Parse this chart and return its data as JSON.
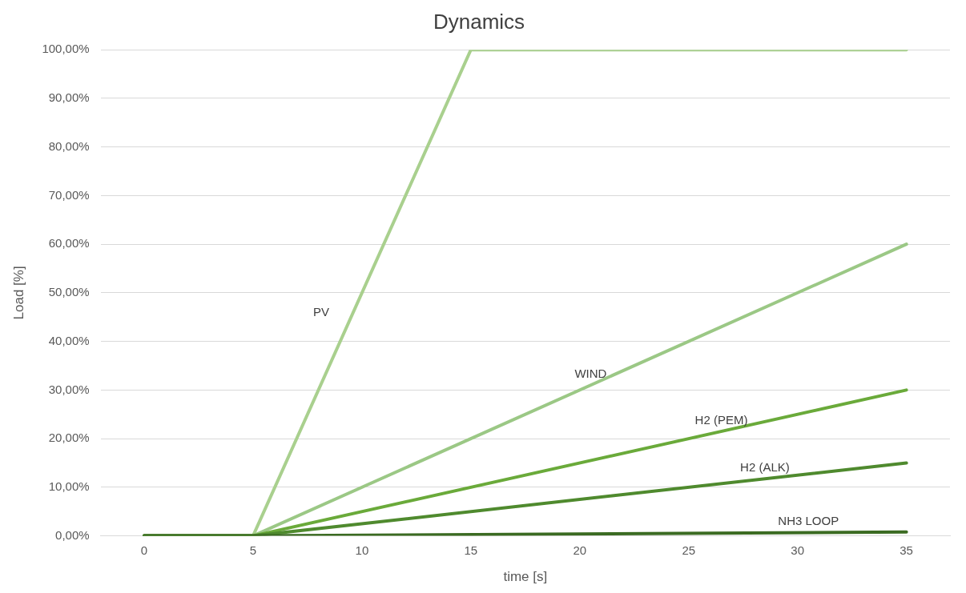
{
  "chart_data": {
    "type": "line",
    "title": "Dynamics",
    "xlabel": "time [s]",
    "ylabel": "Load [%]",
    "xlim": [
      -2,
      37
    ],
    "xticks": [
      0,
      5,
      10,
      15,
      20,
      25,
      30,
      35
    ],
    "ylim": [
      0,
      100
    ],
    "yticks": [
      {
        "value": 0,
        "label": "0,00%"
      },
      {
        "value": 10,
        "label": "10,00%"
      },
      {
        "value": 20,
        "label": "20,00%"
      },
      {
        "value": 30,
        "label": "30,00%"
      },
      {
        "value": 40,
        "label": "40,00%"
      },
      {
        "value": 50,
        "label": "50,00%"
      },
      {
        "value": 60,
        "label": "60,00%"
      },
      {
        "value": 70,
        "label": "70,00%"
      },
      {
        "value": 80,
        "label": "80,00%"
      },
      {
        "value": 90,
        "label": "90,00%"
      },
      {
        "value": 100,
        "label": "100,00%"
      }
    ],
    "grid": "y",
    "legend": false,
    "marker": "none",
    "line_style": "solid",
    "series": [
      {
        "name": "PV",
        "color": "#a9d08e",
        "x": [
          0,
          5,
          15,
          35
        ],
        "values": [
          0,
          0,
          100,
          100
        ]
      },
      {
        "name": "WIND",
        "color": "#9bc885",
        "x": [
          0,
          5,
          35
        ],
        "values": [
          0,
          0,
          60
        ]
      },
      {
        "name": "H2 (PEM)",
        "color": "#6aaa3a",
        "x": [
          0,
          5,
          35
        ],
        "values": [
          0,
          0,
          30
        ]
      },
      {
        "name": "H2 (ALK)",
        "color": "#4f8a2e",
        "x": [
          0,
          5,
          35
        ],
        "values": [
          0,
          0,
          15
        ]
      },
      {
        "name": "NH3 LOOP",
        "color": "#3b6b22",
        "x": [
          0,
          5,
          35
        ],
        "values": [
          0,
          0,
          0.8
        ]
      }
    ]
  }
}
